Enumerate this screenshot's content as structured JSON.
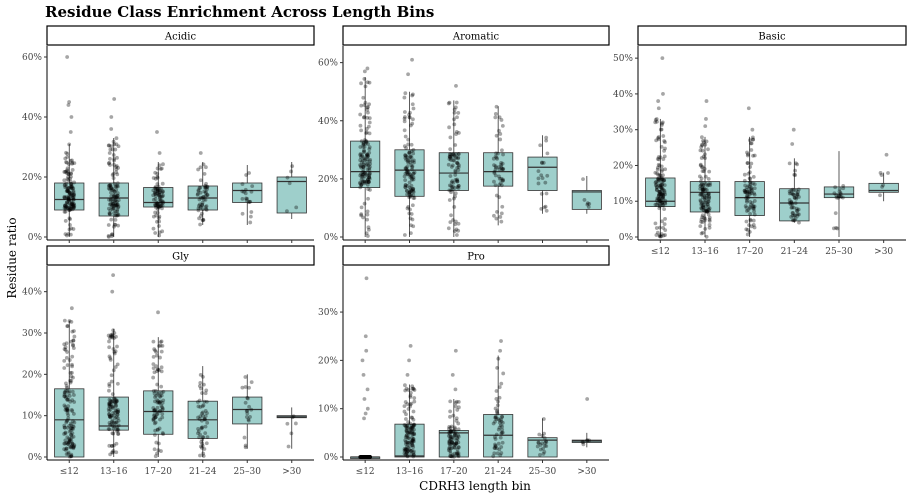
{
  "chart_data": {
    "type": "boxplot",
    "title": "Residue Class Enrichment Across Length Bins",
    "xlabel": "CDRH3 length bin",
    "ylabel": "Residue ratio",
    "categories": [
      "≤12",
      "13–16",
      "17–20",
      "21–24",
      "25–30",
      ">30"
    ],
    "box_color": "#9ecfcb",
    "panels": [
      {
        "name": "Acidic",
        "ylim": [
          0,
          0.62
        ],
        "yticks": [
          0,
          0.2,
          0.4,
          0.6
        ],
        "ytick_labels": [
          "0%",
          "20%",
          "40%",
          "60%"
        ],
        "boxes": [
          {
            "cat": "≤12",
            "q1": 0.09,
            "median": 0.125,
            "q3": 0.18,
            "wlo": 0,
            "whi": 0.31,
            "outliers": [
              0.35,
              0.4,
              0.44,
              0.45,
              0.6
            ]
          },
          {
            "cat": "13–16",
            "q1": 0.07,
            "median": 0.13,
            "q3": 0.18,
            "wlo": 0,
            "whi": 0.33,
            "outliers": [
              0.36,
              0.4,
              0.46
            ]
          },
          {
            "cat": "17–20",
            "q1": 0.1,
            "median": 0.115,
            "q3": 0.165,
            "wlo": 0,
            "whi": 0.25,
            "outliers": [
              0.28,
              0.35
            ]
          },
          {
            "cat": "21–24",
            "q1": 0.09,
            "median": 0.13,
            "q3": 0.17,
            "wlo": 0.04,
            "whi": 0.25,
            "outliers": [
              0.28
            ]
          },
          {
            "cat": "25–30",
            "q1": 0.115,
            "median": 0.155,
            "q3": 0.18,
            "wlo": 0.04,
            "whi": 0.24,
            "outliers": []
          },
          {
            "cat": ">30",
            "q1": 0.08,
            "median": 0.185,
            "q3": 0.2,
            "wlo": 0.06,
            "whi": 0.25,
            "outliers": []
          }
        ]
      },
      {
        "name": "Aromatic",
        "ylim": [
          0,
          0.64
        ],
        "yticks": [
          0,
          0.2,
          0.4,
          0.6
        ],
        "ytick_labels": [
          "0%",
          "20%",
          "40%",
          "60%"
        ],
        "boxes": [
          {
            "cat": "≤12",
            "q1": 0.17,
            "median": 0.225,
            "q3": 0.33,
            "wlo": 0,
            "whi": 0.55,
            "outliers": [
              0.57,
              0.58
            ]
          },
          {
            "cat": "13–16",
            "q1": 0.14,
            "median": 0.23,
            "q3": 0.3,
            "wlo": 0,
            "whi": 0.5,
            "outliers": [
              0.56,
              0.61
            ]
          },
          {
            "cat": "17–20",
            "q1": 0.16,
            "median": 0.22,
            "q3": 0.29,
            "wlo": 0,
            "whi": 0.47,
            "outliers": [
              0.52
            ]
          },
          {
            "cat": "21–24",
            "q1": 0.175,
            "median": 0.225,
            "q3": 0.29,
            "wlo": 0.04,
            "whi": 0.45,
            "outliers": []
          },
          {
            "cat": "25–30",
            "q1": 0.16,
            "median": 0.24,
            "q3": 0.275,
            "wlo": 0.08,
            "whi": 0.35,
            "outliers": []
          },
          {
            "cat": ">30",
            "q1": 0.095,
            "median": 0.155,
            "q3": 0.16,
            "wlo": 0.08,
            "whi": 0.21,
            "outliers": []
          }
        ]
      },
      {
        "name": "Basic",
        "ylim": [
          0,
          0.52
        ],
        "yticks": [
          0,
          0.1,
          0.2,
          0.3,
          0.4,
          0.5
        ],
        "ytick_labels": [
          "0%",
          "10%",
          "20%",
          "30%",
          "40%",
          "50%"
        ],
        "boxes": [
          {
            "cat": "≤12",
            "q1": 0.085,
            "median": 0.1,
            "q3": 0.165,
            "wlo": 0,
            "whi": 0.33,
            "outliers": [
              0.36,
              0.38,
              0.4,
              0.5
            ]
          },
          {
            "cat": "13–16",
            "q1": 0.07,
            "median": 0.125,
            "q3": 0.155,
            "wlo": 0,
            "whi": 0.28,
            "outliers": [
              0.31,
              0.33,
              0.38
            ]
          },
          {
            "cat": "17–20",
            "q1": 0.06,
            "median": 0.11,
            "q3": 0.155,
            "wlo": 0,
            "whi": 0.28,
            "outliers": [
              0.3,
              0.36
            ]
          },
          {
            "cat": "21–24",
            "q1": 0.045,
            "median": 0.095,
            "q3": 0.135,
            "wlo": 0.04,
            "whi": 0.22,
            "outliers": [
              0.26,
              0.3
            ]
          },
          {
            "cat": "25–30",
            "q1": 0.11,
            "median": 0.12,
            "q3": 0.14,
            "wlo": 0,
            "whi": 0.24,
            "outliers": []
          },
          {
            "cat": ">30",
            "q1": 0.125,
            "median": 0.13,
            "q3": 0.15,
            "wlo": 0.1,
            "whi": 0.18,
            "outliers": [
              0.23
            ]
          }
        ]
      },
      {
        "name": "Gly",
        "ylim": [
          0,
          0.45
        ],
        "yticks": [
          0,
          0.1,
          0.2,
          0.3,
          0.4
        ],
        "ytick_labels": [
          "0%",
          "10%",
          "20%",
          "30%",
          "40%"
        ],
        "boxes": [
          {
            "cat": "≤12",
            "q1": 0.0,
            "median": 0.09,
            "q3": 0.165,
            "wlo": 0,
            "whi": 0.33,
            "outliers": [
              0.36
            ]
          },
          {
            "cat": "13–16",
            "q1": 0.065,
            "median": 0.075,
            "q3": 0.145,
            "wlo": 0,
            "whi": 0.31,
            "outliers": [
              0.4,
              0.44
            ]
          },
          {
            "cat": "17–20",
            "q1": 0.055,
            "median": 0.11,
            "q3": 0.16,
            "wlo": 0,
            "whi": 0.29,
            "outliers": [
              0.35
            ]
          },
          {
            "cat": "21–24",
            "q1": 0.045,
            "median": 0.09,
            "q3": 0.135,
            "wlo": 0,
            "whi": 0.22,
            "outliers": []
          },
          {
            "cat": "25–30",
            "q1": 0.08,
            "median": 0.115,
            "q3": 0.145,
            "wlo": 0.02,
            "whi": 0.2,
            "outliers": []
          },
          {
            "cat": ">30",
            "q1": 0.095,
            "median": 0.097,
            "q3": 0.1,
            "wlo": 0.02,
            "whi": 0.12,
            "outliers": []
          }
        ]
      },
      {
        "name": "Pro",
        "ylim": [
          0,
          0.385
        ],
        "yticks": [
          0,
          0.1,
          0.2,
          0.3
        ],
        "ytick_labels": [
          "0%",
          "10%",
          "20%",
          "30%"
        ],
        "boxes": [
          {
            "cat": "≤12",
            "q1": 0,
            "median": 0,
            "q3": 0,
            "wlo": 0,
            "whi": 0,
            "outliers": [
              0.08,
              0.09,
              0.1,
              0.12,
              0.14,
              0.17,
              0.2,
              0.22,
              0.25,
              0.37
            ]
          },
          {
            "cat": "13–16",
            "q1": 0,
            "median": 0.002,
            "q3": 0.068,
            "wlo": 0,
            "whi": 0.15,
            "outliers": [
              0.17,
              0.2,
              0.23
            ]
          },
          {
            "cat": "17–20",
            "q1": 0,
            "median": 0.05,
            "q3": 0.055,
            "wlo": 0,
            "whi": 0.12,
            "outliers": [
              0.14,
              0.17,
              0.22
            ]
          },
          {
            "cat": "21–24",
            "q1": 0,
            "median": 0.045,
            "q3": 0.088,
            "wlo": 0,
            "whi": 0.21,
            "outliers": [
              0.22,
              0.24
            ]
          },
          {
            "cat": "25–30",
            "q1": 0,
            "median": 0.035,
            "q3": 0.04,
            "wlo": 0,
            "whi": 0.08,
            "outliers": []
          },
          {
            "cat": ">30",
            "q1": 0.03,
            "median": 0.033,
            "q3": 0.035,
            "wlo": 0.02,
            "whi": 0.05,
            "outliers": [
              0.12
            ]
          }
        ]
      }
    ]
  }
}
